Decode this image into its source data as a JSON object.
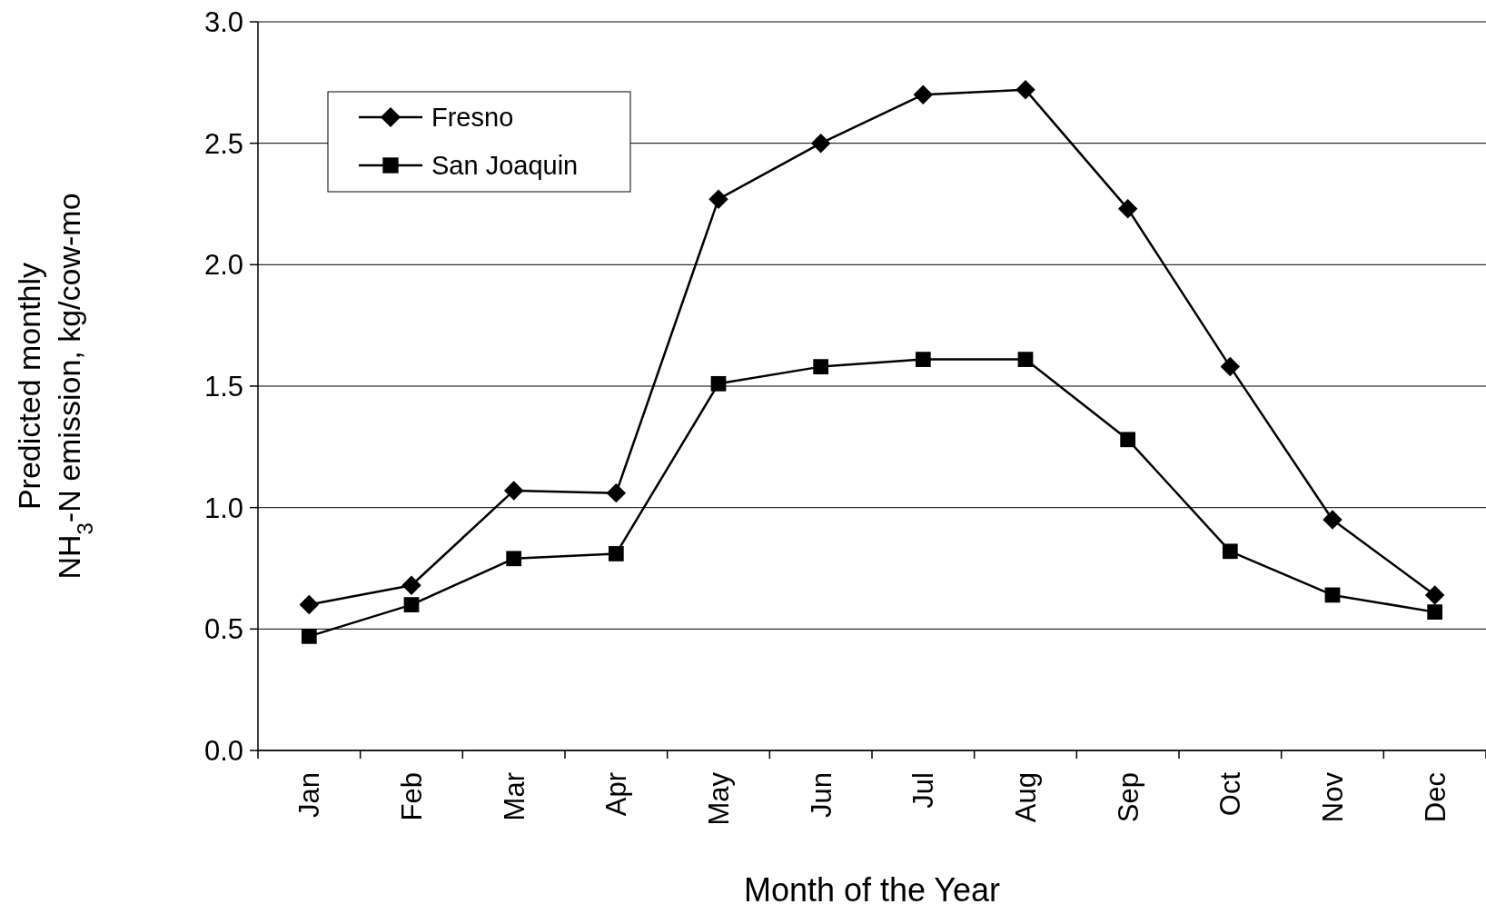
{
  "chart_data": {
    "type": "line",
    "xlabel": "Month of the Year",
    "ylabel": "Predicted monthly\nNH$_{3}$-N emission, kg/cow-mo",
    "categories": [
      "Jan",
      "Feb",
      "Mar",
      "Apr",
      "May",
      "Jun",
      "Jul",
      "Aug",
      "Sep",
      "Oct",
      "Nov",
      "Dec"
    ],
    "series": [
      {
        "name": "Fresno",
        "color": "#000000",
        "marker": "diamond",
        "values": [
          0.6,
          0.68,
          1.07,
          1.06,
          2.27,
          2.5,
          2.7,
          2.72,
          2.23,
          1.58,
          0.95,
          0.64
        ]
      },
      {
        "name": "San Joaquin",
        "color": "#000000",
        "marker": "square",
        "values": [
          0.47,
          0.6,
          0.79,
          0.81,
          1.51,
          1.58,
          1.61,
          1.61,
          1.28,
          0.82,
          0.64,
          0.57
        ]
      }
    ],
    "ylim": [
      0,
      3
    ],
    "yticks": [
      {
        "value": 0,
        "label": "0.0"
      },
      {
        "value": 0.5,
        "label": "0.5"
      },
      {
        "value": 1,
        "label": "1.0"
      },
      {
        "value": 1.5,
        "label": "1.5"
      },
      {
        "value": 2,
        "label": "2.0"
      },
      {
        "value": 2.5,
        "label": "2.5"
      },
      {
        "value": 3,
        "label": "3.0"
      }
    ],
    "grid": "y",
    "legend": "top left",
    "line_style": "solid"
  }
}
